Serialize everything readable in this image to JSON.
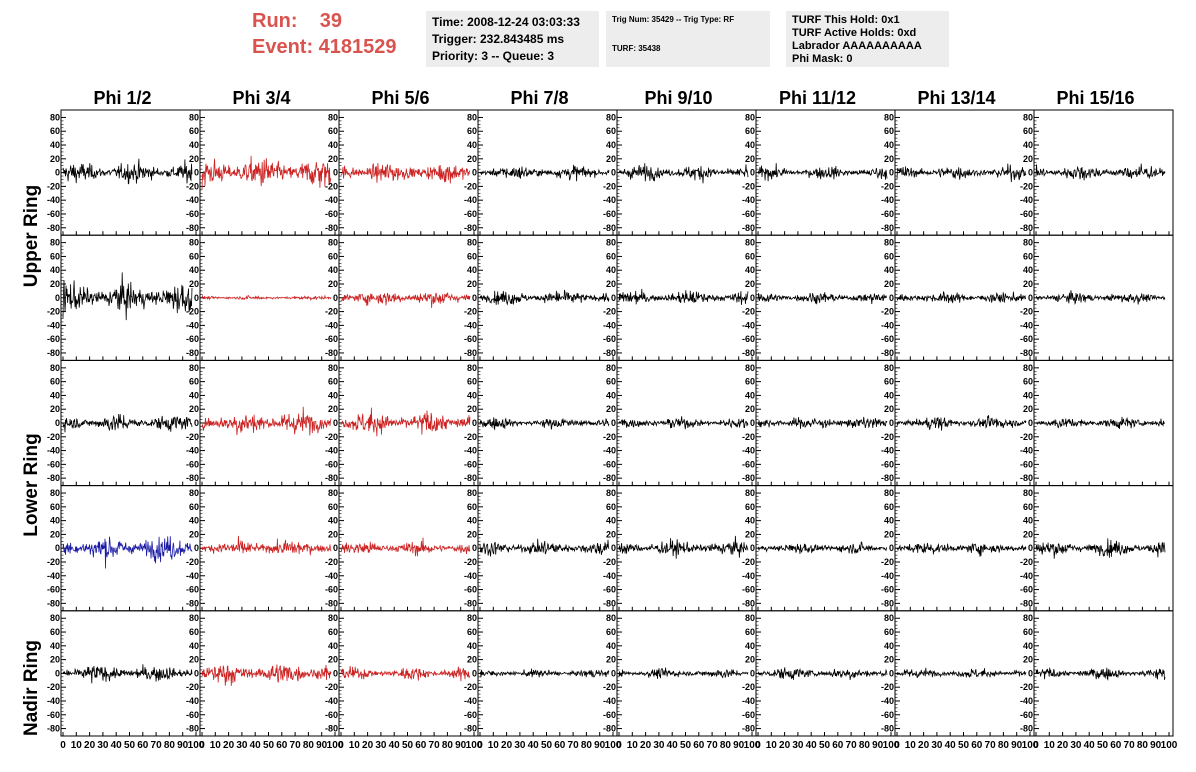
{
  "header": {
    "run_line": "Run:    39",
    "event_line": "Event: 4181529",
    "time_box": {
      "line1": "Time: 2008-12-24 03:03:33",
      "line2": "Trigger: 232.843485 ms",
      "line3": "Priority: 3 -- Queue: 3"
    },
    "trig_box": {
      "line1": "Trig Num: 35429 -- Trig Type: RF",
      "line2": "TURF: 35438"
    },
    "turf_box": {
      "line1": "TURF This Hold: 0x1",
      "line2": "TURF Active Holds: 0xd",
      "line3": "Labrador AAAAAAAAAA",
      "line4": "Phi Mask: 0"
    }
  },
  "colors": {
    "run_text": "#d9534f",
    "box_bg": "#ededed",
    "trace_default": "#000000",
    "trace_triggered": "#cc2222",
    "trace_selected": "#1a1aa6"
  },
  "columns": [
    "Phi 1/2",
    "Phi 3/4",
    "Phi 5/6",
    "Phi 7/8",
    "Phi 9/10",
    "Phi 11/12",
    "Phi 13/14",
    "Phi 15/16"
  ],
  "ring_labels": [
    "Upper Ring",
    "Lower Ring",
    "Nadir Ring"
  ],
  "chart_data": {
    "type": "line",
    "title": "",
    "xlim": [
      0,
      100
    ],
    "ylim": [
      -85,
      85
    ],
    "x_ticks": [
      "0",
      "10",
      "20",
      "30",
      "40",
      "50",
      "60",
      "70",
      "80",
      "90",
      "100"
    ],
    "y_ticks": [
      "-80",
      "-60",
      "-40",
      "-20",
      "0",
      "20",
      "40",
      "60",
      "80"
    ],
    "rows": 5,
    "cols": 8,
    "panel_colors": [
      [
        "default",
        "triggered",
        "triggered",
        "default",
        "default",
        "default",
        "default",
        "default"
      ],
      [
        "default",
        "triggered",
        "triggered",
        "default",
        "default",
        "default",
        "default",
        "default"
      ],
      [
        "default",
        "triggered",
        "triggered",
        "default",
        "default",
        "default",
        "default",
        "default"
      ],
      [
        "selected",
        "triggered",
        "triggered",
        "default",
        "default",
        "default",
        "default",
        "default"
      ],
      [
        "default",
        "triggered",
        "triggered",
        "default",
        "default",
        "default",
        "default",
        "default"
      ]
    ],
    "amplitudes": [
      [
        26,
        40,
        26,
        18,
        20,
        16,
        18,
        20
      ],
      [
        40,
        5,
        20,
        18,
        18,
        14,
        14,
        14
      ],
      [
        22,
        32,
        30,
        14,
        14,
        16,
        16,
        14
      ],
      [
        32,
        22,
        18,
        20,
        20,
        14,
        16,
        20
      ],
      [
        22,
        28,
        16,
        10,
        12,
        16,
        12,
        14
      ]
    ]
  }
}
